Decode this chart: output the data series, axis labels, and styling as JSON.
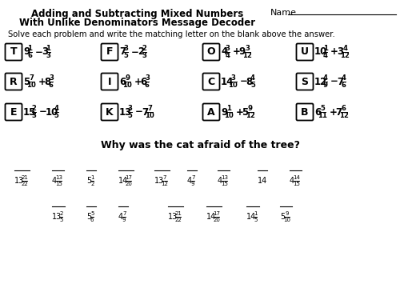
{
  "title_line1": "Adding and Subtracting Mixed Numbers",
  "title_line2": "With Unlike Denominators Message Decoder",
  "name_label": "Name",
  "instruction": "Solve each problem and write the matching letter on the blank above the answer.",
  "question": "Why was the cat afraid of the tree?",
  "bg_color": "#ffffff",
  "row1": [
    {
      "letter": "T",
      "w1": "9",
      "n1": "1",
      "d1": "6",
      "op": "−",
      "w2": "3",
      "n2": "1",
      "d2": "3"
    },
    {
      "letter": "F",
      "w1": "7",
      "n1": "3",
      "d1": "5",
      "op": "−",
      "w2": "2",
      "n2": "2",
      "d2": "3"
    },
    {
      "letter": "O",
      "w1": "4",
      "n1": "3",
      "d1": "4",
      "op": "+",
      "w2": "9",
      "n2": "3",
      "d2": "12"
    },
    {
      "letter": "U",
      "w1": "10",
      "n1": "1",
      "d1": "4",
      "op": "+",
      "w2": "3",
      "n2": "4",
      "d2": "12"
    }
  ],
  "row2": [
    {
      "letter": "R",
      "w1": "5",
      "n1": "7",
      "d1": "10",
      "op": "+",
      "w2": "8",
      "n2": "3",
      "d2": "6"
    },
    {
      "letter": "I",
      "w1": "6",
      "n1": "9",
      "d1": "10",
      "op": "+",
      "w2": "6",
      "n2": "3",
      "d2": "6"
    },
    {
      "letter": "C",
      "w1": "14",
      "n1": "3",
      "d1": "10",
      "op": "−",
      "w2": "8",
      "n2": "4",
      "d2": "5"
    },
    {
      "letter": "S",
      "w1": "12",
      "n1": "4",
      "d1": "9",
      "op": "−",
      "w2": "7",
      "n2": "4",
      "d2": "6"
    }
  ],
  "row3": [
    {
      "letter": "E",
      "w1": "15",
      "n1": "2",
      "d1": "3",
      "op": "−",
      "w2": "10",
      "n2": "4",
      "d2": "5"
    },
    {
      "letter": "K",
      "w1": "13",
      "n1": "3",
      "d1": "5",
      "op": "−",
      "w2": "7",
      "n2": "7",
      "d2": "10"
    },
    {
      "letter": "A",
      "w1": "9",
      "n1": "1",
      "d1": "10",
      "op": "+",
      "w2": "5",
      "n2": "9",
      "d2": "12"
    },
    {
      "letter": "B",
      "w1": "6",
      "n1": "5",
      "d1": "11",
      "op": "+",
      "w2": "7",
      "n2": "6",
      "d2": "12"
    }
  ],
  "ans_row1": [
    [
      "13",
      "21",
      "22"
    ],
    [
      "4",
      "13",
      "15"
    ],
    [
      "5",
      "1",
      "2"
    ],
    [
      "14",
      "17",
      "20"
    ],
    [
      "13",
      "7",
      "12"
    ],
    [
      "4",
      "7",
      "9"
    ],
    [
      "4",
      "13",
      "15"
    ],
    [
      "14",
      "",
      ""
    ],
    [
      "4",
      "14",
      "15"
    ]
  ],
  "ans_row1_x": [
    18,
    65,
    108,
    148,
    193,
    234,
    272,
    322,
    362
  ],
  "ans_row2": [
    [
      "13",
      "2",
      "5"
    ],
    [
      "5",
      "5",
      "6"
    ],
    [
      "4",
      "7",
      "9"
    ],
    [
      "13",
      "21",
      "22"
    ],
    [
      "14",
      "17",
      "20"
    ],
    [
      "14",
      "1",
      "5"
    ],
    [
      "5",
      "9",
      "10"
    ]
  ],
  "ans_row2_x": [
    65,
    108,
    148,
    210,
    258,
    308,
    350
  ]
}
